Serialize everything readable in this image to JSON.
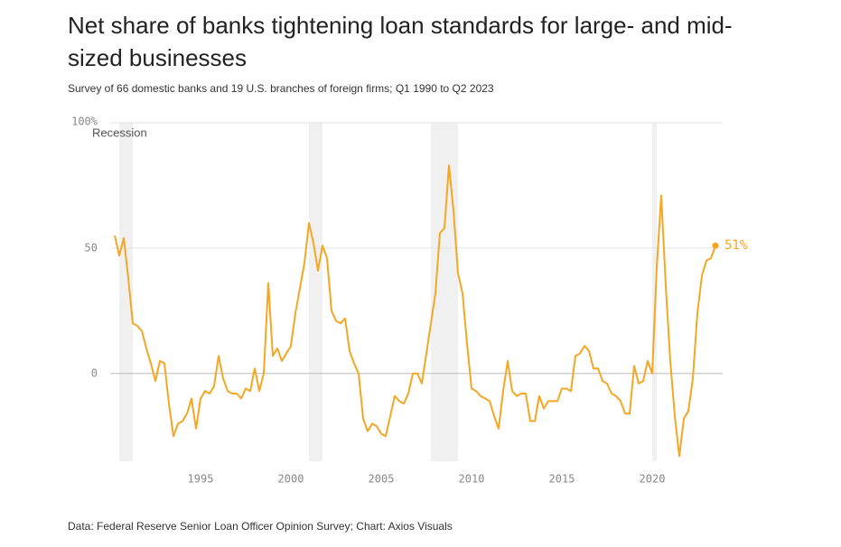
{
  "chart_data": {
    "type": "line",
    "title": "Net share of banks tightening loan standards for large- and mid-sized businesses",
    "subtitle": "Survey of 66 domestic banks and 19 U.S. branches of foreign firms; Q1 1990 to Q2 2023",
    "source": "Data: Federal Reserve Senior Loan Officer Opinion Survey; Chart: Axios Visuals",
    "recession_label": "Recession",
    "recessions": [
      [
        1990.5,
        1991.25
      ],
      [
        2001,
        2001.75
      ],
      [
        2007.75,
        2009.25
      ],
      [
        2020,
        2020.25
      ]
    ],
    "x": [
      1990.25,
      1990.5,
      1990.75,
      1991,
      1991.25,
      1991.5,
      1991.75,
      1992,
      1992.25,
      1992.5,
      1992.75,
      1993,
      1993.25,
      1993.5,
      1993.75,
      1994,
      1994.25,
      1994.5,
      1994.75,
      1995,
      1995.25,
      1995.5,
      1995.75,
      1996,
      1996.25,
      1996.5,
      1996.75,
      1997,
      1997.25,
      1997.5,
      1997.75,
      1998,
      1998.25,
      1998.5,
      1998.75,
      1999,
      1999.25,
      1999.5,
      1999.75,
      2000,
      2000.25,
      2000.5,
      2000.75,
      2001,
      2001.25,
      2001.5,
      2001.75,
      2002,
      2002.25,
      2002.5,
      2002.75,
      2003,
      2003.25,
      2003.5,
      2003.75,
      2004,
      2004.25,
      2004.5,
      2004.75,
      2005,
      2005.25,
      2005.5,
      2005.75,
      2006,
      2006.25,
      2006.5,
      2006.75,
      2007,
      2007.25,
      2007.5,
      2007.75,
      2008,
      2008.25,
      2008.5,
      2008.75,
      2009,
      2009.25,
      2009.5,
      2009.75,
      2010,
      2010.25,
      2010.5,
      2010.75,
      2011,
      2011.25,
      2011.5,
      2011.75,
      2012,
      2012.25,
      2012.5,
      2012.75,
      2013,
      2013.25,
      2013.5,
      2013.75,
      2014,
      2014.25,
      2014.5,
      2014.75,
      2015,
      2015.25,
      2015.5,
      2015.75,
      2016,
      2016.25,
      2016.5,
      2016.75,
      2017,
      2017.25,
      2017.5,
      2017.75,
      2018,
      2018.25,
      2018.5,
      2018.75,
      2019,
      2019.25,
      2019.5,
      2019.75,
      2020,
      2020.25,
      2020.5,
      2020.75,
      2021,
      2021.25,
      2021.5,
      2021.75,
      2022,
      2022.25,
      2022.5,
      2022.75,
      2023,
      2023.25,
      2023.5
    ],
    "series": [
      {
        "name": "Net share",
        "color": "#f5a623",
        "values": [
          55,
          47,
          54,
          38,
          20,
          19,
          17,
          10,
          4,
          -3,
          5,
          4,
          -12,
          -25,
          -20,
          -19,
          -16,
          -10,
          -22,
          -10,
          -7,
          -8,
          -5,
          7,
          -2,
          -7,
          -8,
          -8,
          -10,
          -6,
          -7,
          2,
          -7,
          0,
          36,
          7,
          10,
          5,
          8,
          11,
          24,
          34,
          44,
          60,
          52,
          41,
          51,
          46,
          25,
          21,
          20,
          22,
          9,
          4,
          0,
          -18,
          -23,
          -20,
          -21,
          -24,
          -25,
          -17,
          -9,
          -11,
          -12,
          -8,
          0,
          0,
          -4,
          8,
          20,
          32,
          56,
          58,
          83,
          65,
          40,
          32,
          12,
          -6,
          -7,
          -9,
          -10,
          -11,
          -17,
          -22,
          -7,
          5,
          -7,
          -9,
          -8,
          -8,
          -19,
          -19,
          -9,
          -14,
          -11,
          -11,
          -11,
          -6,
          -6,
          -7,
          7,
          8,
          11,
          9,
          2,
          2,
          -3,
          -4,
          -8,
          -9,
          -11,
          -16,
          -16,
          3,
          -4,
          -3,
          5,
          0,
          42,
          71,
          35,
          5,
          -17,
          -33,
          -18,
          -15,
          -2,
          24,
          39,
          45,
          46,
          51
        ]
      }
    ],
    "last_value_label": "51%",
    "xlim": [
      1990,
      2023.9
    ],
    "ylim": [
      -35,
      100
    ],
    "xticks": [
      1995,
      2000,
      2005,
      2010,
      2015,
      2020
    ],
    "yticks": [
      0,
      50,
      {
        "value": 100,
        "label": "100%"
      }
    ],
    "grid": true
  }
}
